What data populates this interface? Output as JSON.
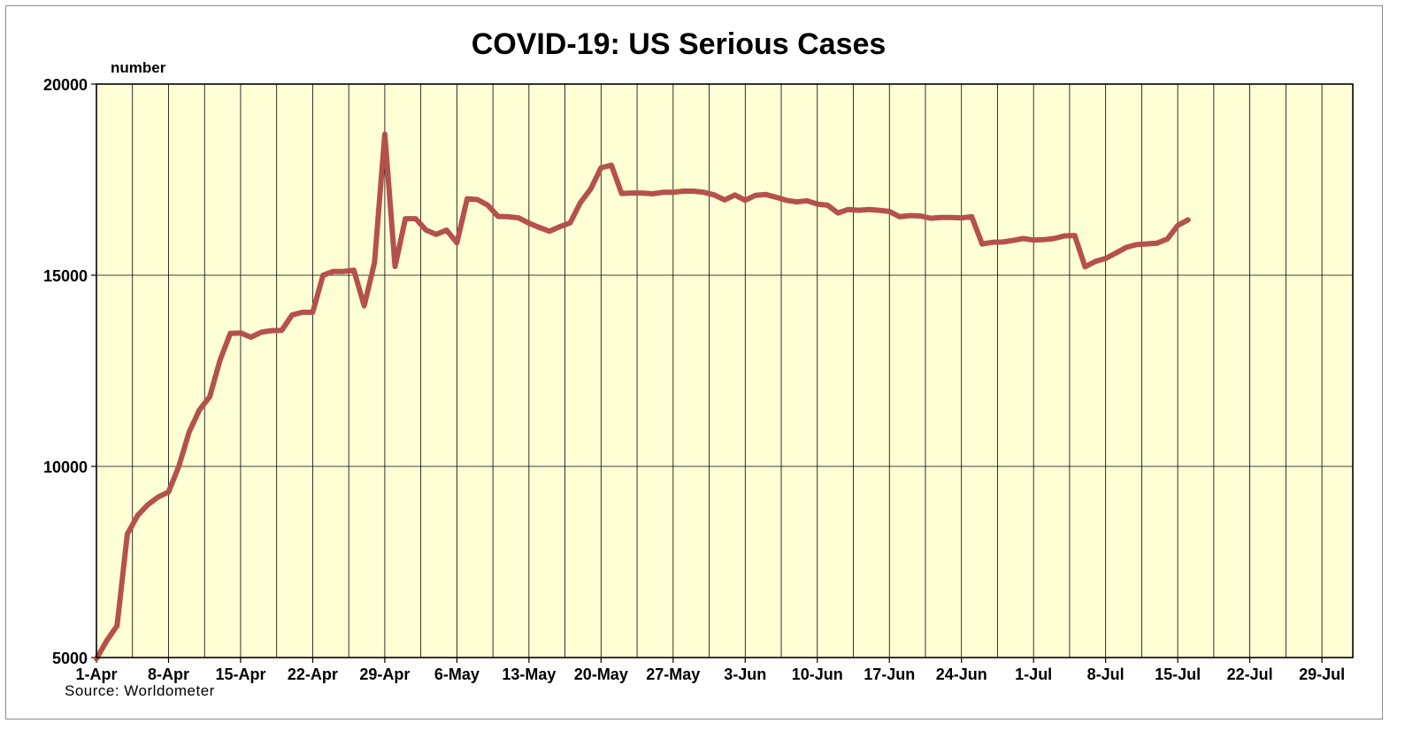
{
  "chart_data": {
    "type": "line",
    "title": "COVID-19: US Serious Cases",
    "unit_label": "number",
    "source": "Source: Worldometer",
    "xlabel": "",
    "ylabel": "",
    "ylim": [
      5000,
      20000
    ],
    "yticks": [
      5000,
      10000,
      15000,
      20000
    ],
    "x_range_days": [
      0,
      122
    ],
    "xtick_labels": [
      "1-Apr",
      "8-Apr",
      "15-Apr",
      "22-Apr",
      "29-Apr",
      "6-May",
      "13-May",
      "20-May",
      "27-May",
      "3-Jun",
      "10-Jun",
      "17-Jun",
      "24-Jun",
      "1-Jul",
      "8-Jul",
      "15-Jul",
      "22-Jul",
      "29-Jul"
    ],
    "grid": {
      "vertical": true,
      "horizontal": true
    },
    "plot_background": "#ffffd6",
    "series": [
      {
        "color": "#b5514c",
        "x": [
          "2020-04-01",
          "2020-04-02",
          "2020-04-03",
          "2020-04-04",
          "2020-04-05",
          "2020-04-06",
          "2020-04-07",
          "2020-04-08",
          "2020-04-09",
          "2020-04-10",
          "2020-04-11",
          "2020-04-12",
          "2020-04-13",
          "2020-04-14",
          "2020-04-15",
          "2020-04-16",
          "2020-04-17",
          "2020-04-18",
          "2020-04-19",
          "2020-04-20",
          "2020-04-21",
          "2020-04-22",
          "2020-04-23",
          "2020-04-24",
          "2020-04-25",
          "2020-04-26",
          "2020-04-27",
          "2020-04-28",
          "2020-04-29",
          "2020-04-30",
          "2020-05-01",
          "2020-05-02",
          "2020-05-03",
          "2020-05-04",
          "2020-05-05",
          "2020-05-06",
          "2020-05-07",
          "2020-05-08",
          "2020-05-09",
          "2020-05-10",
          "2020-05-11",
          "2020-05-12",
          "2020-05-13",
          "2020-05-14",
          "2020-05-15",
          "2020-05-16",
          "2020-05-17",
          "2020-05-18",
          "2020-05-19",
          "2020-05-20",
          "2020-05-21",
          "2020-05-22",
          "2020-05-23",
          "2020-05-24",
          "2020-05-25",
          "2020-05-26",
          "2020-05-27",
          "2020-05-28",
          "2020-05-29",
          "2020-05-30",
          "2020-05-31",
          "2020-06-01",
          "2020-06-02",
          "2020-06-03",
          "2020-06-04",
          "2020-06-05",
          "2020-06-06",
          "2020-06-07",
          "2020-06-08",
          "2020-06-09",
          "2020-06-10",
          "2020-06-11",
          "2020-06-12",
          "2020-06-13",
          "2020-06-14",
          "2020-06-15",
          "2020-06-16",
          "2020-06-17",
          "2020-06-18",
          "2020-06-19",
          "2020-06-20",
          "2020-06-21",
          "2020-06-22",
          "2020-06-23",
          "2020-06-24",
          "2020-06-25",
          "2020-06-26",
          "2020-06-27",
          "2020-06-28",
          "2020-06-29",
          "2020-06-30",
          "2020-07-01",
          "2020-07-02",
          "2020-07-03",
          "2020-07-04",
          "2020-07-05",
          "2020-07-06",
          "2020-07-07",
          "2020-07-08",
          "2020-07-09",
          "2020-07-10",
          "2020-07-11",
          "2020-07-12",
          "2020-07-13",
          "2020-07-14",
          "2020-07-15",
          "2020-07-16"
        ],
        "values": [
          4970,
          5440,
          5830,
          8230,
          8720,
          9000,
          9200,
          9330,
          10000,
          10900,
          11480,
          11820,
          12780,
          13480,
          13490,
          13380,
          13510,
          13550,
          13560,
          13960,
          14030,
          14030,
          15000,
          15100,
          15100,
          15130,
          14200,
          15330,
          18690,
          15230,
          16480,
          16480,
          16180,
          16070,
          16180,
          15850,
          17000,
          16980,
          16830,
          16540,
          16530,
          16500,
          16360,
          16250,
          16150,
          16270,
          16370,
          16900,
          17260,
          17810,
          17880,
          17140,
          17150,
          17150,
          17130,
          17170,
          17170,
          17200,
          17200,
          17170,
          17100,
          16970,
          17100,
          16960,
          17090,
          17110,
          17040,
          16960,
          16920,
          16950,
          16860,
          16830,
          16630,
          16720,
          16700,
          16720,
          16700,
          16670,
          16530,
          16560,
          16550,
          16490,
          16510,
          16510,
          16500,
          16530,
          15820,
          15860,
          15870,
          15910,
          15960,
          15920,
          15930,
          15960,
          16030,
          16040,
          15220,
          15360,
          15440,
          15580,
          15730,
          15800,
          15820,
          15840,
          15950,
          16300,
          16450
        ]
      }
    ]
  }
}
